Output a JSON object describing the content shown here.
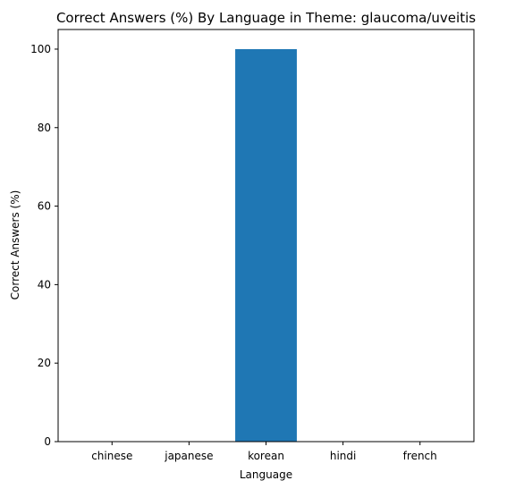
{
  "chart_data": {
    "type": "bar",
    "title": "Correct Answers (%) By Language in Theme: glaucoma/uveitis",
    "xlabel": "Language",
    "ylabel": "Correct Answers (%)",
    "categories": [
      "chinese",
      "japanese",
      "korean",
      "hindi",
      "french"
    ],
    "values": [
      0,
      0,
      100,
      0,
      0
    ],
    "ylim": [
      0,
      105
    ],
    "yticks": [
      0,
      20,
      40,
      60,
      80,
      100
    ],
    "grid": false,
    "bar_color": "#1f77b4"
  }
}
